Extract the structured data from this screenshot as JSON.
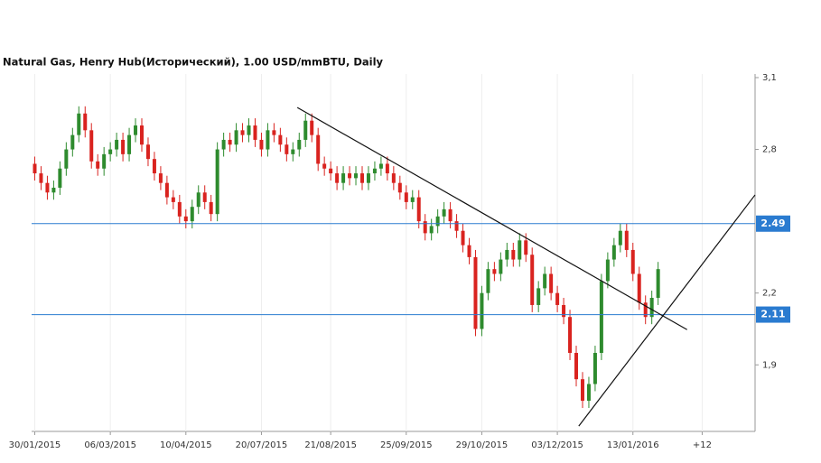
{
  "chart_data": {
    "type": "candlestick",
    "title": "Natural Gas, Henry Hub(Исторический), 1.00 USD/mmBTU, Daily",
    "up_color": "#2e8b2e",
    "down_color": "#d9231f",
    "open": [
      2.74,
      2.7,
      2.66,
      2.62,
      2.64,
      2.72,
      2.8,
      2.86,
      2.95,
      2.88,
      2.75,
      2.72,
      2.78,
      2.8,
      2.84,
      2.78,
      2.86,
      2.9,
      2.82,
      2.76,
      2.7,
      2.66,
      2.6,
      2.58,
      2.52,
      2.5,
      2.56,
      2.62,
      2.58,
      2.53,
      2.8,
      2.84,
      2.82,
      2.88,
      2.86,
      2.9,
      2.84,
      2.8,
      2.88,
      2.86,
      2.82,
      2.78,
      2.8,
      2.84,
      2.92,
      2.86,
      2.74,
      2.72,
      2.7,
      2.66,
      2.7,
      2.68,
      2.7,
      2.66,
      2.7,
      2.72,
      2.74,
      2.7,
      2.66,
      2.62,
      2.58,
      2.6,
      2.5,
      2.45,
      2.48,
      2.52,
      2.55,
      2.5,
      2.46,
      2.4,
      2.35,
      2.05,
      2.2,
      2.3,
      2.28,
      2.34,
      2.38,
      2.34,
      2.42,
      2.36,
      2.15,
      2.22,
      2.28,
      2.2,
      2.15,
      2.1,
      1.95,
      1.84,
      1.75,
      1.82,
      1.95,
      2.25,
      2.34,
      2.4,
      2.46,
      2.38,
      2.28,
      2.16,
      2.1,
      2.18
    ],
    "high": [
      2.77,
      2.73,
      2.69,
      2.67,
      2.75,
      2.83,
      2.89,
      2.98,
      2.98,
      2.91,
      2.78,
      2.81,
      2.83,
      2.87,
      2.87,
      2.89,
      2.93,
      2.93,
      2.85,
      2.79,
      2.73,
      2.69,
      2.63,
      2.61,
      2.55,
      2.59,
      2.65,
      2.65,
      2.61,
      2.83,
      2.87,
      2.87,
      2.91,
      2.91,
      2.93,
      2.93,
      2.87,
      2.91,
      2.91,
      2.89,
      2.85,
      2.83,
      2.87,
      2.95,
      2.95,
      2.89,
      2.77,
      2.75,
      2.73,
      2.73,
      2.73,
      2.73,
      2.73,
      2.73,
      2.75,
      2.77,
      2.77,
      2.73,
      2.69,
      2.65,
      2.63,
      2.63,
      2.53,
      2.51,
      2.55,
      2.58,
      2.58,
      2.53,
      2.49,
      2.43,
      2.38,
      2.23,
      2.33,
      2.33,
      2.37,
      2.41,
      2.41,
      2.45,
      2.45,
      2.39,
      2.25,
      2.31,
      2.31,
      2.23,
      2.18,
      2.13,
      1.98,
      1.87,
      1.85,
      1.98,
      2.28,
      2.37,
      2.43,
      2.49,
      2.49,
      2.41,
      2.31,
      2.19,
      2.21,
      2.33
    ],
    "low": [
      2.67,
      2.63,
      2.59,
      2.59,
      2.61,
      2.69,
      2.77,
      2.83,
      2.85,
      2.72,
      2.69,
      2.69,
      2.75,
      2.77,
      2.75,
      2.75,
      2.83,
      2.79,
      2.73,
      2.67,
      2.63,
      2.57,
      2.55,
      2.49,
      2.47,
      2.47,
      2.53,
      2.55,
      2.5,
      2.5,
      2.77,
      2.79,
      2.79,
      2.83,
      2.83,
      2.81,
      2.77,
      2.77,
      2.83,
      2.79,
      2.75,
      2.75,
      2.77,
      2.81,
      2.83,
      2.71,
      2.69,
      2.67,
      2.63,
      2.63,
      2.65,
      2.65,
      2.63,
      2.63,
      2.67,
      2.69,
      2.67,
      2.63,
      2.59,
      2.55,
      2.55,
      2.47,
      2.42,
      2.42,
      2.45,
      2.49,
      2.47,
      2.43,
      2.37,
      2.32,
      2.02,
      2.02,
      2.17,
      2.25,
      2.25,
      2.31,
      2.31,
      2.31,
      2.33,
      2.12,
      2.12,
      2.19,
      2.17,
      2.12,
      2.07,
      1.92,
      1.81,
      1.72,
      1.72,
      1.79,
      1.92,
      2.22,
      2.31,
      2.37,
      2.35,
      2.25,
      2.13,
      2.07,
      2.07,
      2.15
    ],
    "close": [
      2.7,
      2.66,
      2.62,
      2.64,
      2.72,
      2.8,
      2.86,
      2.95,
      2.88,
      2.75,
      2.72,
      2.78,
      2.8,
      2.84,
      2.78,
      2.86,
      2.9,
      2.82,
      2.76,
      2.7,
      2.66,
      2.6,
      2.58,
      2.52,
      2.5,
      2.56,
      2.62,
      2.58,
      2.53,
      2.8,
      2.84,
      2.82,
      2.88,
      2.86,
      2.9,
      2.84,
      2.8,
      2.88,
      2.86,
      2.82,
      2.78,
      2.8,
      2.84,
      2.92,
      2.86,
      2.74,
      2.72,
      2.7,
      2.66,
      2.7,
      2.68,
      2.7,
      2.66,
      2.7,
      2.72,
      2.74,
      2.7,
      2.66,
      2.62,
      2.58,
      2.6,
      2.5,
      2.45,
      2.48,
      2.52,
      2.55,
      2.5,
      2.46,
      2.4,
      2.35,
      2.05,
      2.2,
      2.3,
      2.28,
      2.34,
      2.38,
      2.34,
      2.42,
      2.36,
      2.15,
      2.22,
      2.28,
      2.2,
      2.15,
      2.1,
      1.95,
      1.84,
      1.75,
      1.82,
      1.95,
      2.25,
      2.34,
      2.4,
      2.46,
      2.38,
      2.28,
      2.16,
      2.1,
      2.18,
      2.3
    ],
    "xlim": [
      -0.5,
      114.4
    ],
    "xticks": [
      {
        "value": 0,
        "label": "30/01/2015"
      },
      {
        "value": 12,
        "label": "06/03/2015"
      },
      {
        "value": 24,
        "label": "10/04/2015"
      },
      {
        "value": 36,
        "label": "20/07/2015"
      },
      {
        "value": 47,
        "label": "21/08/2015"
      },
      {
        "value": 59,
        "label": "25/09/2015"
      },
      {
        "value": 71,
        "label": "29/10/2015"
      },
      {
        "value": 83,
        "label": "03/12/2015"
      },
      {
        "value": 95,
        "label": "13/01/2016"
      },
      {
        "value": 106,
        "label": "+12"
      }
    ],
    "ylim": [
      1.622,
      3.115
    ],
    "yticks": [
      {
        "value": 1.9,
        "label": "1,9"
      },
      {
        "value": 2.2,
        "label": "2,2"
      },
      {
        "value": 2.8,
        "label": "2,8"
      },
      {
        "value": 3.1,
        "label": "3,1"
      }
    ],
    "hlines": [
      2.49,
      2.11
    ],
    "hline_color": "#2a7bd0",
    "trendlines": [
      {
        "x": [
          41.7,
          103.6
        ],
        "y": [
          2.975,
          2.047
        ]
      },
      {
        "x": [
          86.4,
          114.4
        ],
        "y": [
          1.644,
          2.61
        ]
      }
    ],
    "grid": true
  }
}
